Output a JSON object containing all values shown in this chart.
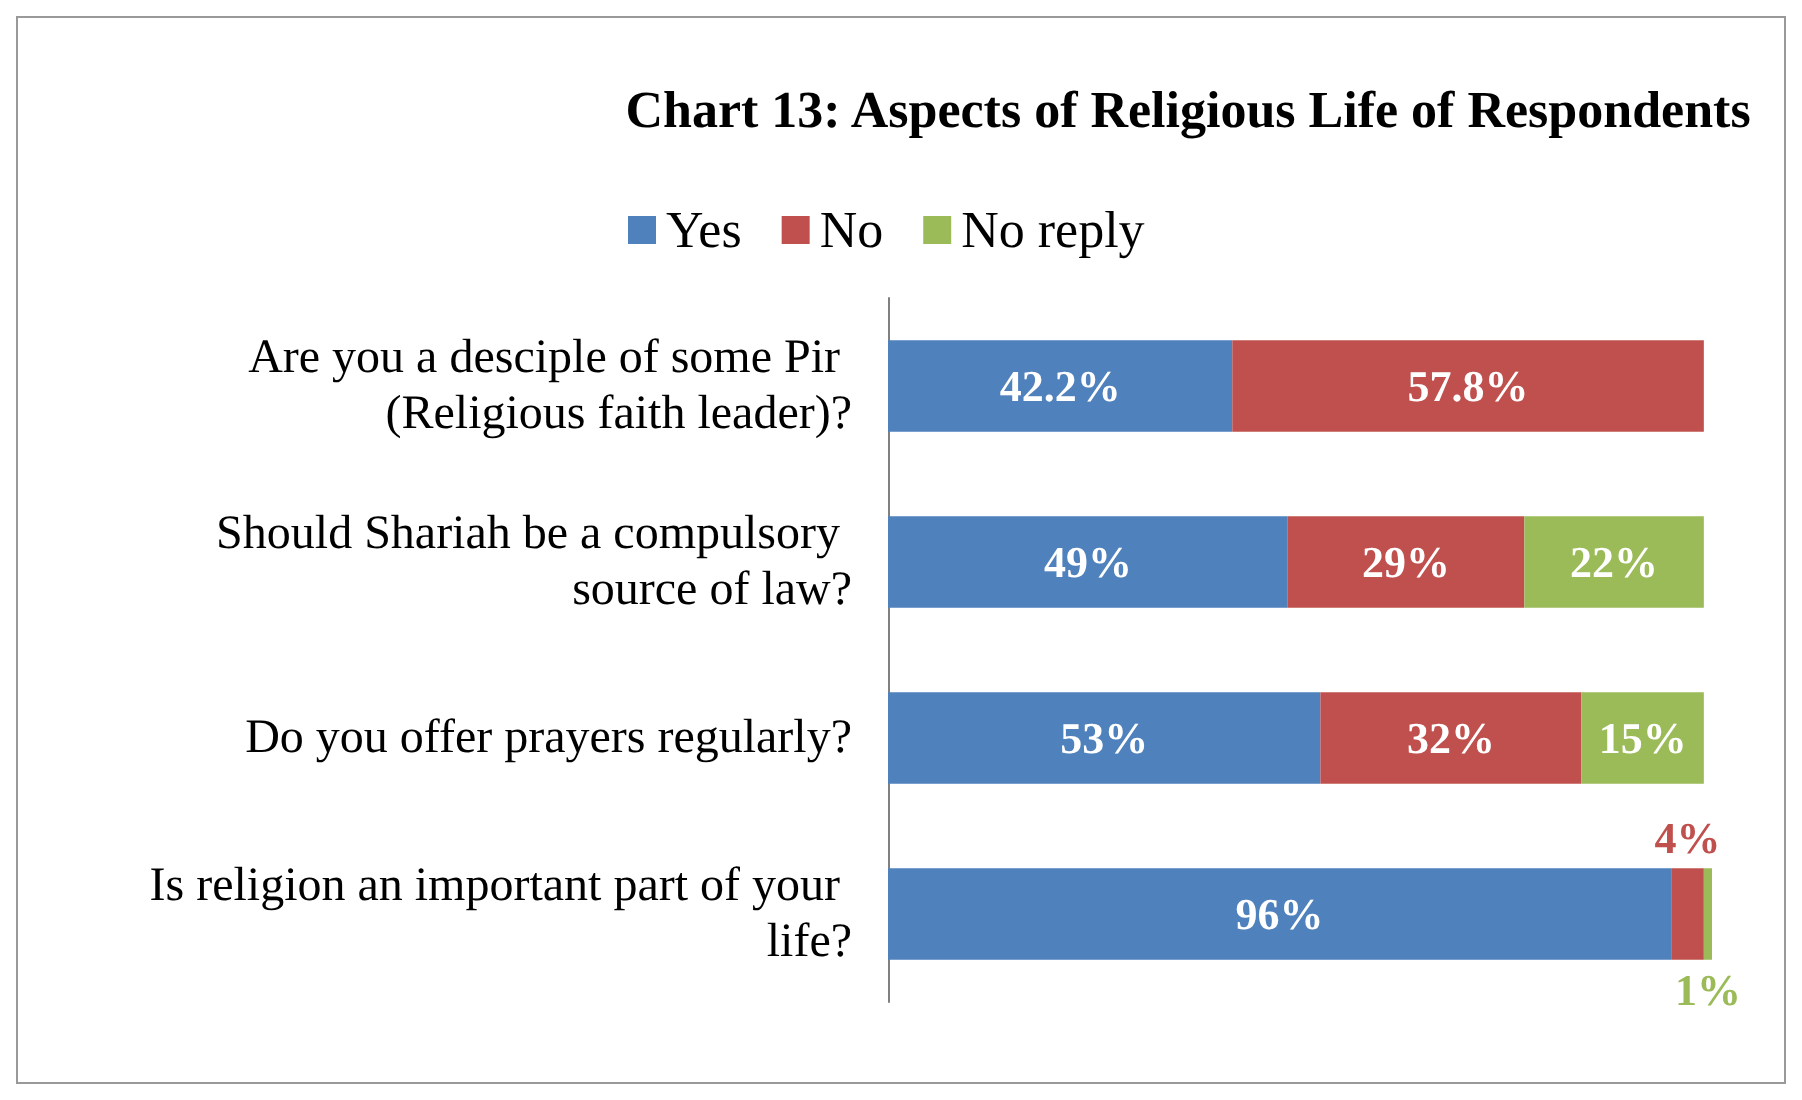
{
  "chart_data": {
    "type": "bar",
    "orientation": "horizontal",
    "stacked": true,
    "title": "Chart 13: Aspects of Religious Life of Respondents",
    "categories": [
      "Are you a desciple of some Pir (Religious faith leader)?",
      "Should Shariah be a compulsory source of law?",
      "Do you offer prayers regularly?",
      "Is religion an important part of your life?"
    ],
    "series": [
      {
        "name": "Yes",
        "color": "#4f81bd",
        "values": [
          42.2,
          49,
          53,
          96
        ],
        "value_labels": [
          "42.2%",
          "49%",
          "53%",
          "96%"
        ]
      },
      {
        "name": "No",
        "color": "#c0504d",
        "values": [
          57.8,
          29,
          32,
          4
        ],
        "value_labels": [
          "57.8%",
          "29%",
          "32%",
          "4%"
        ]
      },
      {
        "name": "No reply",
        "color": "#9bbb59",
        "values": [
          null,
          22,
          15,
          1
        ],
        "value_labels": [
          null,
          "22%",
          "15%",
          "1%"
        ]
      }
    ],
    "xlim": [
      0,
      101
    ],
    "tick_labels": "y",
    "legend": "top"
  }
}
